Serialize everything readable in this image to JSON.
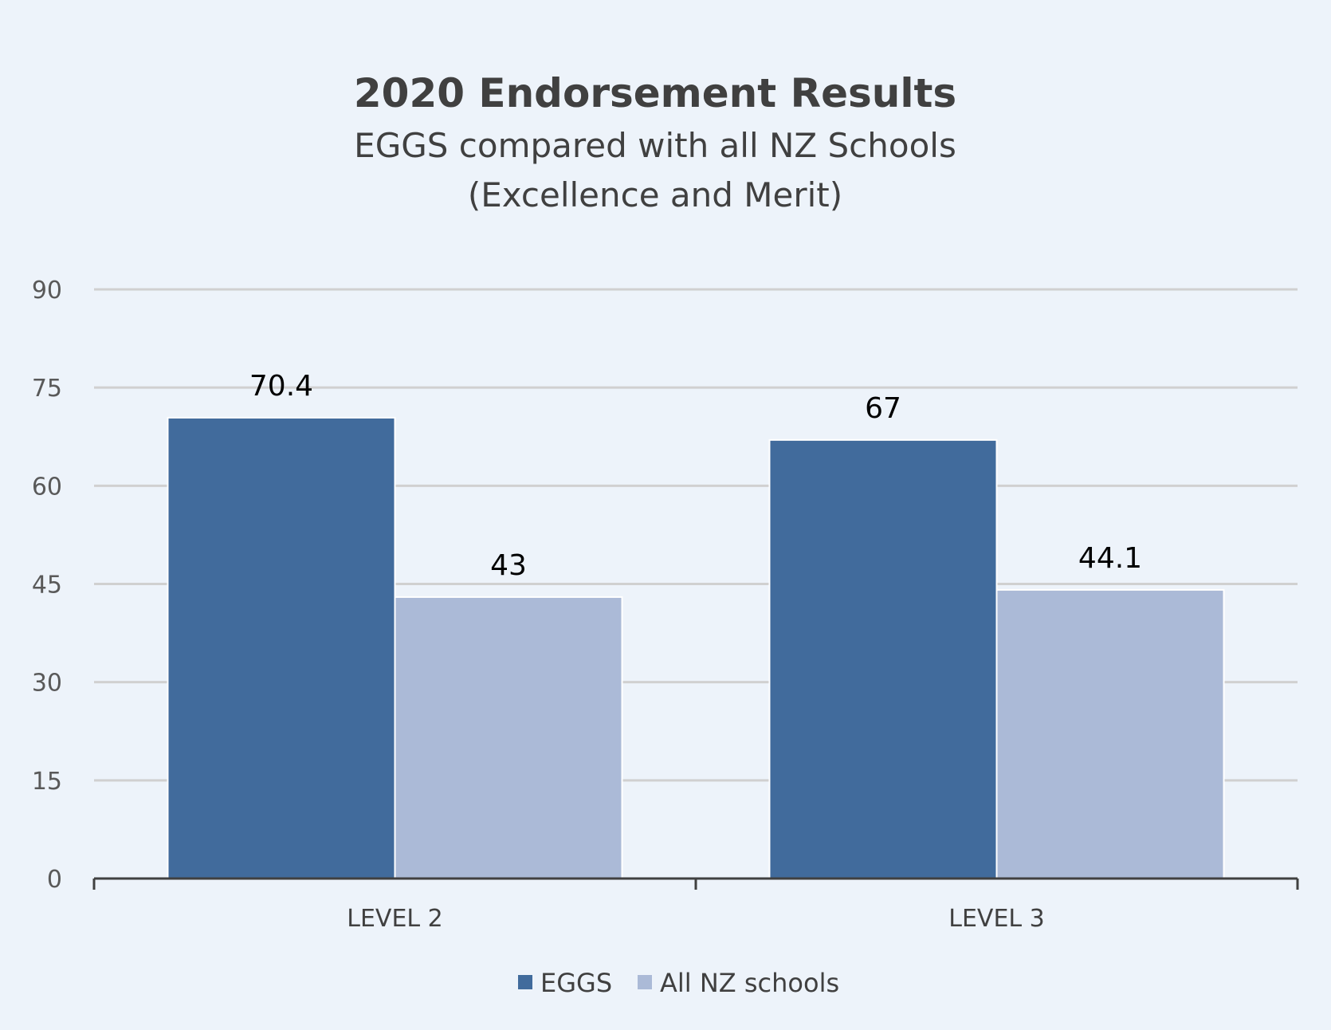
{
  "chart_data": {
    "type": "bar",
    "title": "2020 Endorsement Results",
    "subtitle": [
      "EGGS compared with all NZ Schools",
      "(Excellence and Merit)"
    ],
    "categories": [
      "LEVEL 2",
      "LEVEL 3"
    ],
    "series": [
      {
        "name": "EGGS",
        "values": [
          70.4,
          67
        ],
        "color": "#416b9c"
      },
      {
        "name": "All NZ schools",
        "values": [
          43,
          44.1
        ],
        "color": "#abbad7"
      }
    ],
    "ylim": [
      0,
      90
    ],
    "yticks": [
      0,
      15,
      30,
      45,
      60,
      75,
      90
    ],
    "grid": true,
    "legend": "bottom"
  }
}
